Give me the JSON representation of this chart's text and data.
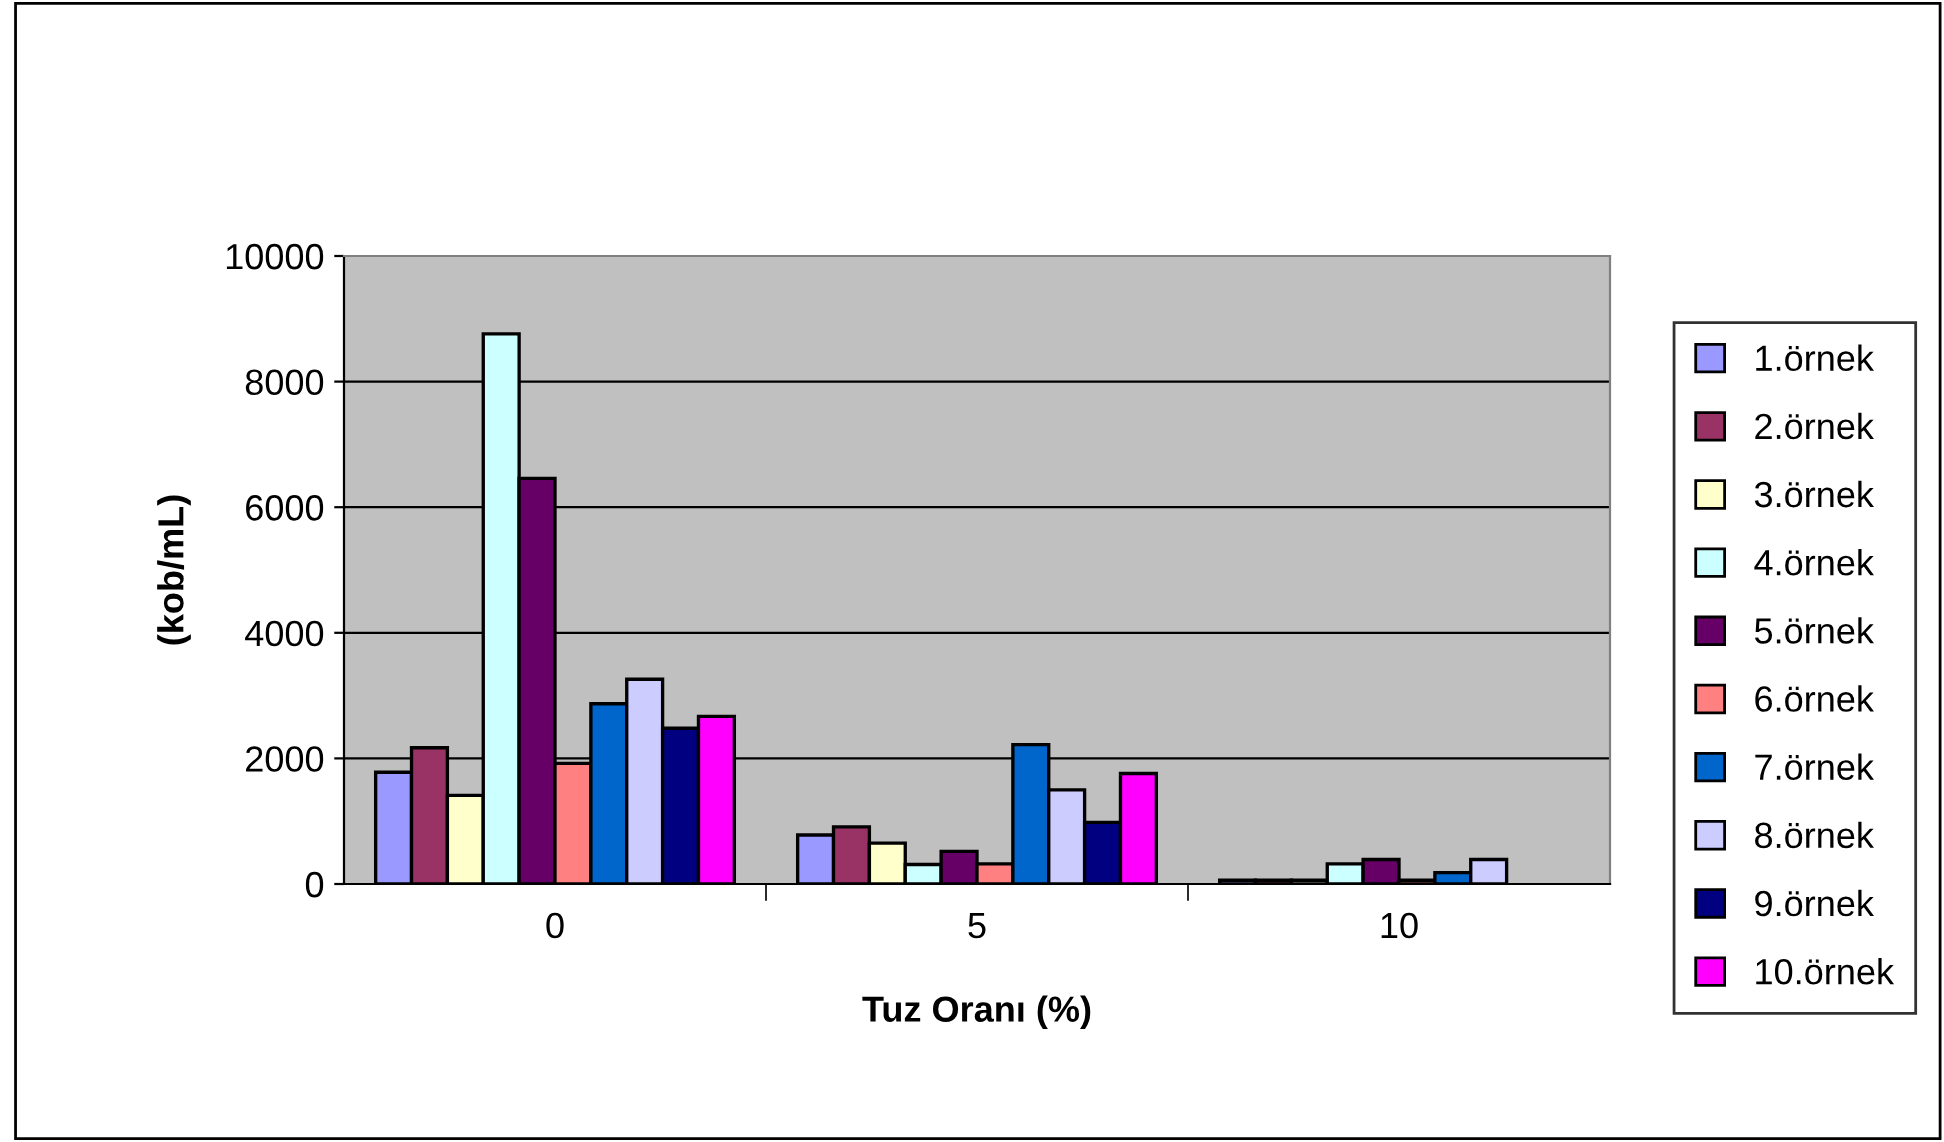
{
  "chart_data": {
    "type": "bar",
    "xlabel": "Tuz Oranı (%)",
    "ylabel": "(kob/mL)",
    "categories": [
      "0",
      "5",
      "10"
    ],
    "series": [
      {
        "name": "1.örnek",
        "color": "#9999ff",
        "values": [
          1780,
          780,
          60
        ]
      },
      {
        "name": "2.örnek",
        "color": "#993366",
        "values": [
          2170,
          910,
          60
        ]
      },
      {
        "name": "3.örnek",
        "color": "#ffffcc",
        "values": [
          1410,
          650,
          60
        ]
      },
      {
        "name": "4.örnek",
        "color": "#ccffff",
        "values": [
          8760,
          310,
          320
        ]
      },
      {
        "name": "5.örnek",
        "color": "#660066",
        "values": [
          6460,
          520,
          390
        ]
      },
      {
        "name": "6.örnek",
        "color": "#ff8080",
        "values": [
          1920,
          320,
          60
        ]
      },
      {
        "name": "7.örnek",
        "color": "#0066cc",
        "values": [
          2870,
          2220,
          180
        ]
      },
      {
        "name": "8.örnek",
        "color": "#ccccff",
        "values": [
          3260,
          1500,
          390
        ]
      },
      {
        "name": "9.örnek",
        "color": "#000080",
        "values": [
          2480,
          980,
          null
        ]
      },
      {
        "name": "10.örnek",
        "color": "#ff00ff",
        "values": [
          2670,
          1760,
          null
        ]
      }
    ],
    "ylim": [
      0,
      10000
    ],
    "yticks": [
      0,
      2000,
      4000,
      6000,
      8000,
      10000
    ],
    "grid": "y",
    "legend": "right"
  }
}
